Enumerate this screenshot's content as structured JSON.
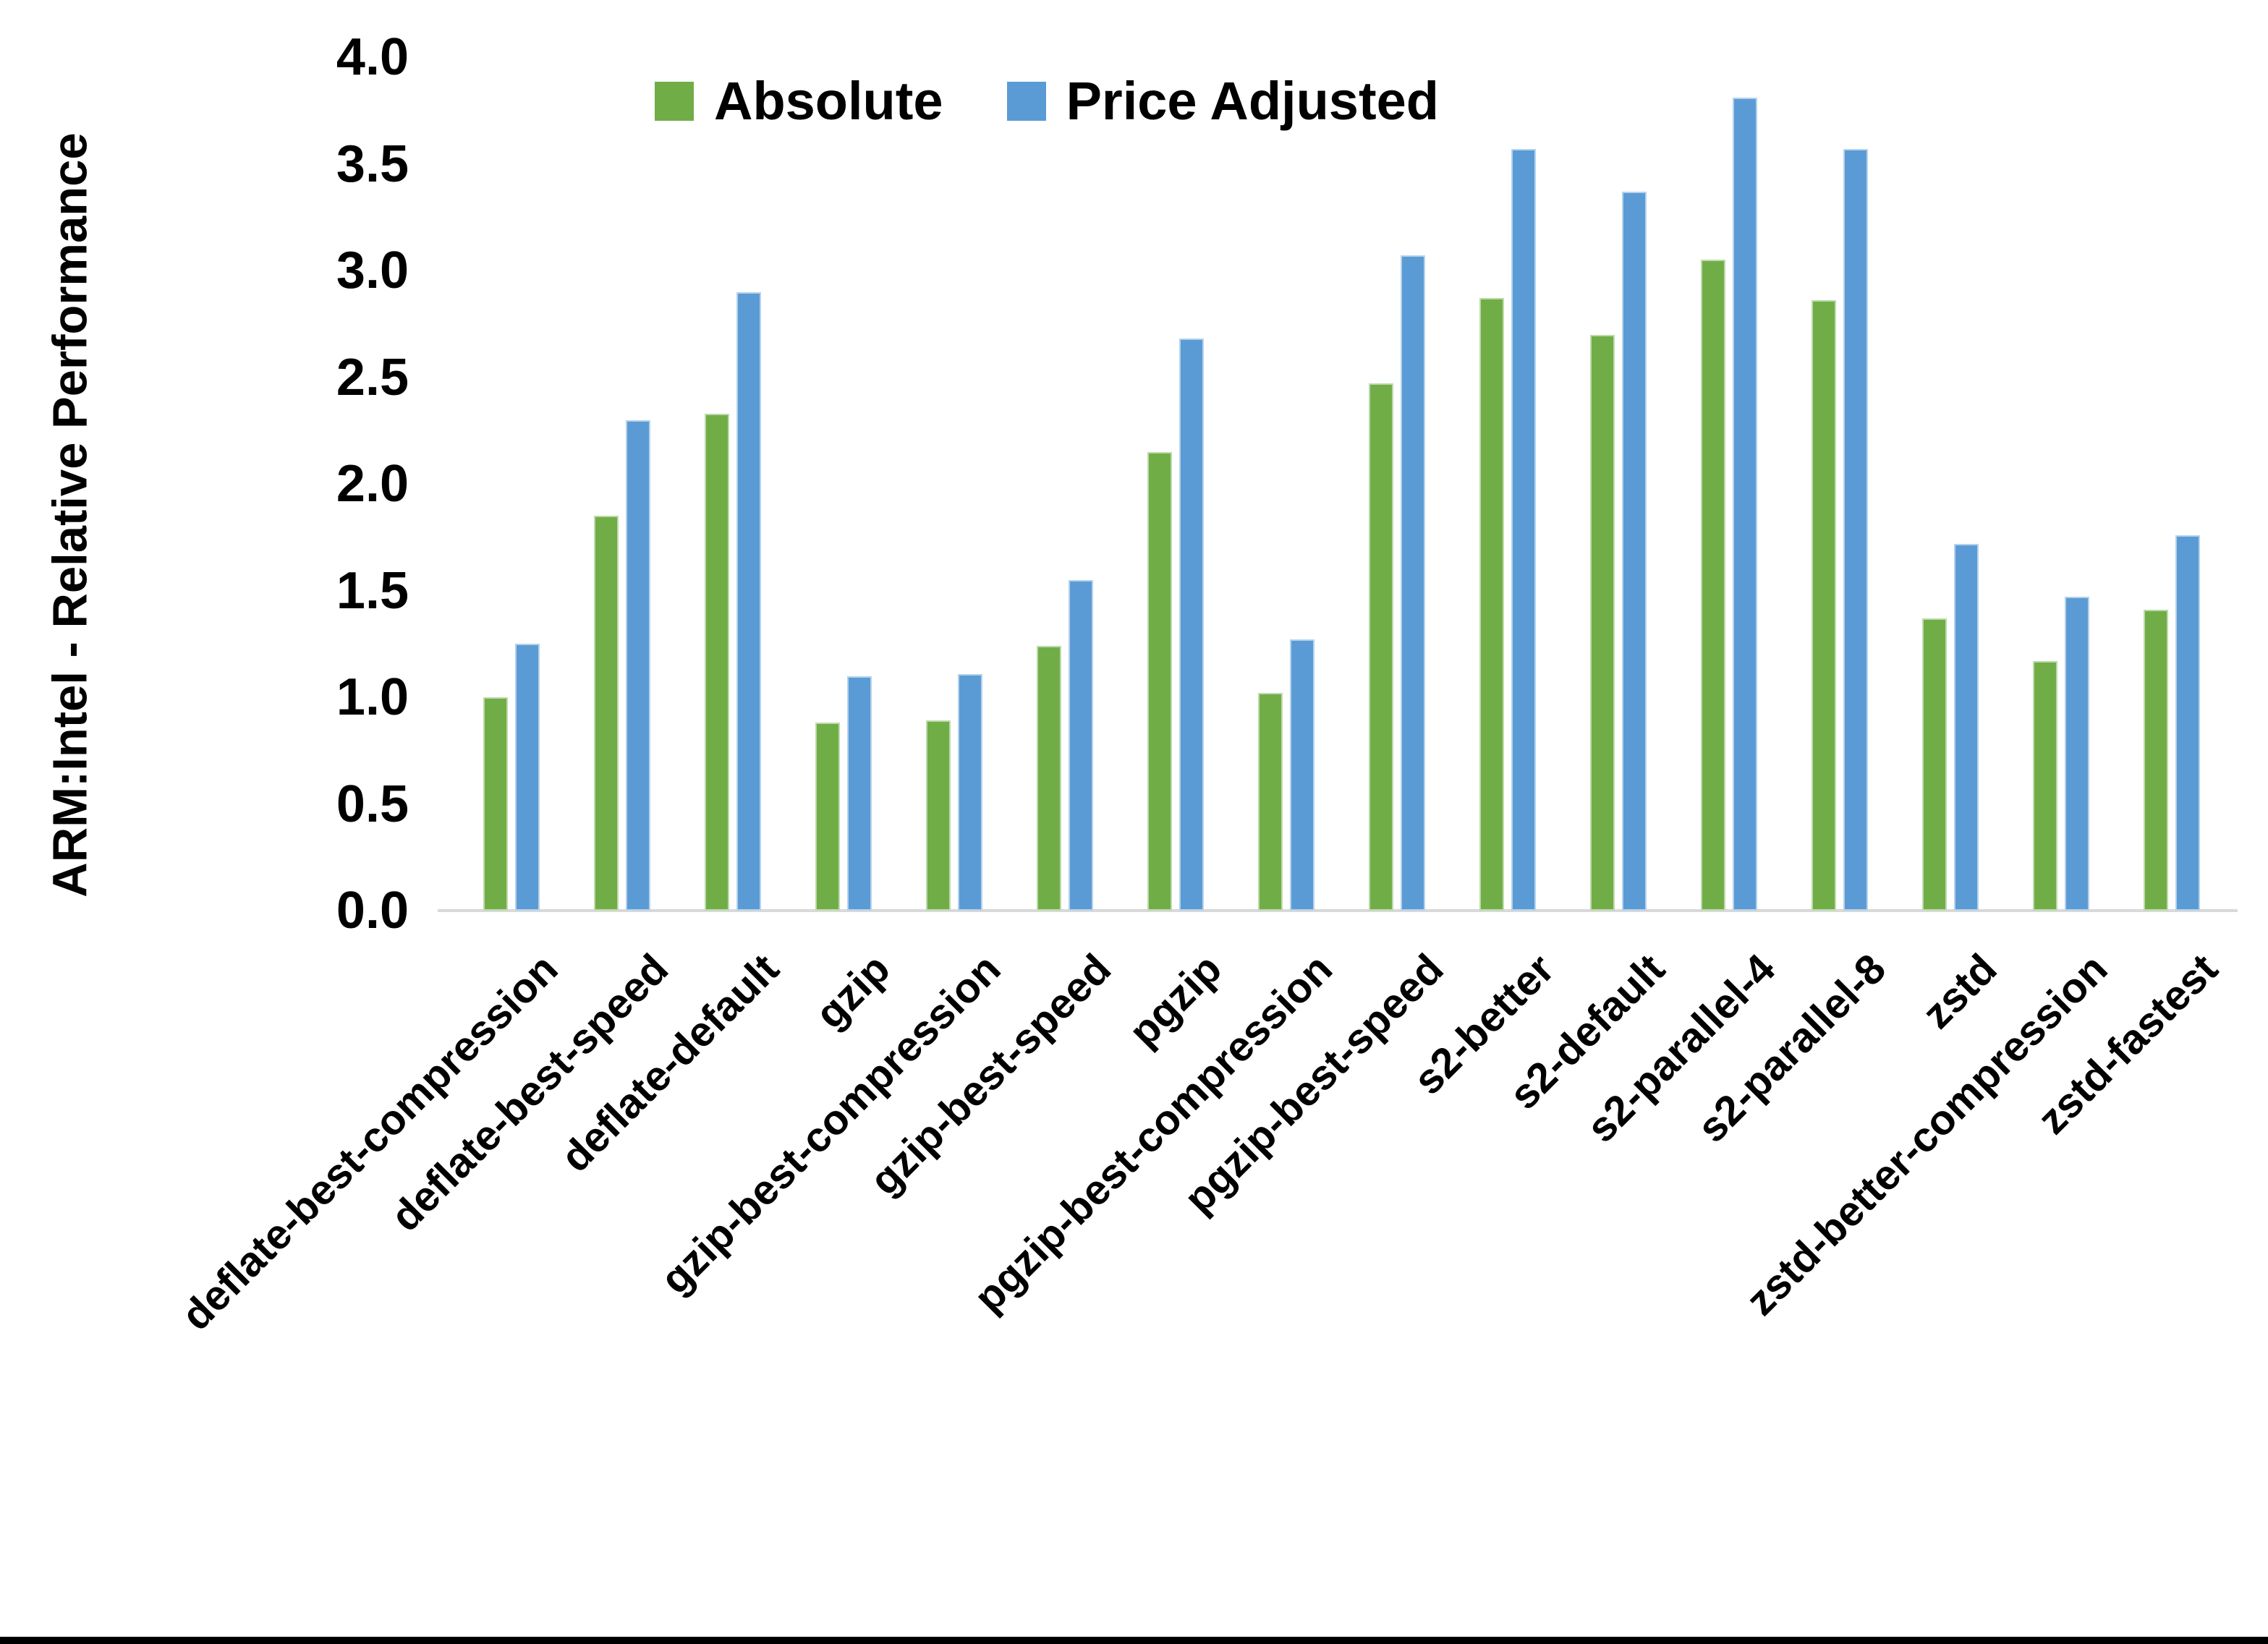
{
  "chart_data": {
    "type": "bar",
    "title": "",
    "ylabel": "ARM:Intel - Relative Performance",
    "xlabel": "",
    "ylim": [
      0.0,
      4.0
    ],
    "ytick_labels": [
      "0.0",
      "0.5",
      "1.0",
      "1.5",
      "2.0",
      "2.5",
      "3.0",
      "3.5",
      "4.0"
    ],
    "grid": false,
    "legend_position": "top",
    "categories": [
      "deflate-best-compression",
      "deflate-best-speed",
      "deflate-default",
      "gzip",
      "gzip-best-compression",
      "gzip-best-speed",
      "pgzip",
      "pgzip-best-compression",
      "pgzip-best-speed",
      "s2-better",
      "s2-default",
      "s2-parallel-4",
      "s2-parallel-8",
      "zstd",
      "zstd-better-compression",
      "zstd-fastest"
    ],
    "series": [
      {
        "name": "Absolute",
        "color": "#70AD47",
        "values": [
          1.0,
          1.85,
          2.33,
          0.88,
          0.89,
          1.24,
          2.15,
          1.02,
          2.47,
          2.87,
          2.7,
          3.05,
          2.86,
          1.37,
          1.17,
          1.41
        ]
      },
      {
        "name": "Price Adjusted",
        "color": "#5B9BD5",
        "values": [
          1.25,
          2.3,
          2.9,
          1.1,
          1.11,
          1.55,
          2.68,
          1.27,
          3.07,
          3.57,
          3.37,
          3.81,
          3.57,
          1.72,
          1.47,
          1.76
        ]
      }
    ]
  }
}
